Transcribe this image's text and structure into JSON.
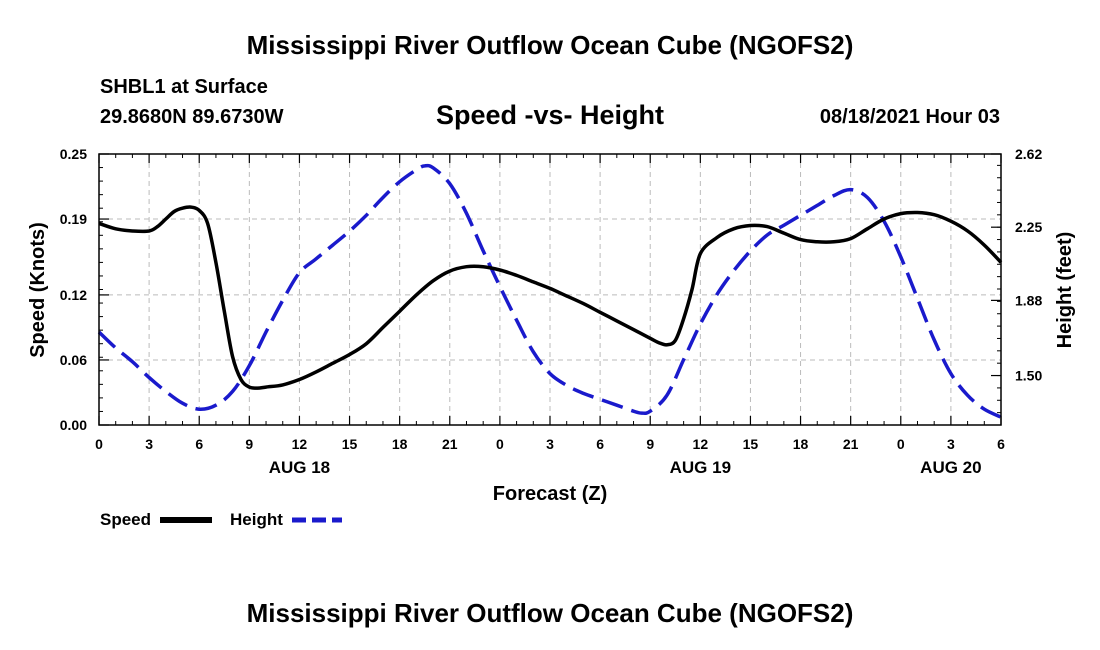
{
  "header": {
    "title": "Mississippi River Outflow Ocean Cube (NGOFS2)",
    "station": "SHBL1 at Surface",
    "coords": "29.8680N  89.6730W",
    "subtitle": "Speed -vs- Height",
    "datetime": "08/18/2021 Hour 03"
  },
  "footer": {
    "title": "Mississippi River Outflow Ocean Cube (NGOFS2)"
  },
  "legend": {
    "speed_label": "Speed",
    "height_label": "Height"
  },
  "chart_data": {
    "type": "line",
    "title": "Speed -vs- Height",
    "xlabel": "Forecast (Z)",
    "ylabel": "Speed (Knots)",
    "y2label": "Height (feet)",
    "x_range_hours": [
      0,
      54
    ],
    "x_ticks": [
      {
        "hour": 0,
        "label": "0"
      },
      {
        "hour": 3,
        "label": "3"
      },
      {
        "hour": 6,
        "label": "6"
      },
      {
        "hour": 9,
        "label": "9"
      },
      {
        "hour": 12,
        "label": "12"
      },
      {
        "hour": 15,
        "label": "15"
      },
      {
        "hour": 18,
        "label": "18"
      },
      {
        "hour": 21,
        "label": "21"
      },
      {
        "hour": 24,
        "label": "0"
      },
      {
        "hour": 27,
        "label": "3"
      },
      {
        "hour": 30,
        "label": "6"
      },
      {
        "hour": 33,
        "label": "9"
      },
      {
        "hour": 36,
        "label": "12"
      },
      {
        "hour": 39,
        "label": "15"
      },
      {
        "hour": 42,
        "label": "18"
      },
      {
        "hour": 45,
        "label": "21"
      },
      {
        "hour": 48,
        "label": "0"
      },
      {
        "hour": 51,
        "label": "3"
      },
      {
        "hour": 54,
        "label": "6"
      }
    ],
    "date_labels": [
      {
        "hour": 12,
        "label": "AUG 18"
      },
      {
        "hour": 36,
        "label": "AUG 19"
      },
      {
        "hour": 51,
        "label": "AUG 20"
      }
    ],
    "y_left": {
      "min": 0,
      "max": 0.25,
      "ticks": [
        "0.00",
        "0.06",
        "0.12",
        "0.19",
        "0.25"
      ]
    },
    "y_right": {
      "min": 1.25,
      "max": 2.62,
      "ticks": [
        "1.50",
        "1.88",
        "2.25",
        "2.62"
      ]
    },
    "grid": true,
    "legend_position": "bottom-left",
    "series": [
      {
        "name": "Speed",
        "axis": "left",
        "color": "#000000",
        "style": "solid",
        "x": [
          0,
          1,
          2,
          3,
          3.5,
          4,
          4.5,
          5,
          5.5,
          6,
          6.5,
          7,
          7.5,
          8,
          8.5,
          9,
          9.5,
          10,
          11,
          12,
          13,
          14,
          15,
          16,
          17,
          18,
          19,
          20,
          21,
          22,
          23,
          24,
          25,
          26,
          27,
          28,
          29,
          30,
          31,
          32,
          33,
          33.5,
          34,
          34.5,
          35,
          35.5,
          36,
          37,
          38,
          39,
          40,
          41,
          42,
          43,
          44,
          45,
          46,
          47,
          48,
          49,
          50,
          51,
          52,
          53,
          54
        ],
        "values": [
          0.186,
          0.181,
          0.179,
          0.179,
          0.183,
          0.19,
          0.197,
          0.2,
          0.201,
          0.198,
          0.186,
          0.15,
          0.105,
          0.063,
          0.042,
          0.035,
          0.034,
          0.035,
          0.037,
          0.042,
          0.049,
          0.057,
          0.065,
          0.075,
          0.09,
          0.105,
          0.12,
          0.133,
          0.142,
          0.146,
          0.146,
          0.143,
          0.138,
          0.132,
          0.126,
          0.119,
          0.112,
          0.104,
          0.096,
          0.088,
          0.08,
          0.076,
          0.074,
          0.078,
          0.098,
          0.125,
          0.158,
          0.173,
          0.181,
          0.184,
          0.183,
          0.177,
          0.171,
          0.169,
          0.169,
          0.172,
          0.181,
          0.19,
          0.195,
          0.196,
          0.194,
          0.188,
          0.179,
          0.166,
          0.15
        ]
      },
      {
        "name": "Height",
        "axis": "right",
        "color": "#1a1acc",
        "style": "dashed",
        "x": [
          0,
          1,
          2,
          3,
          4,
          5,
          6,
          7,
          8,
          9,
          10,
          11,
          12,
          13,
          14,
          15,
          16,
          17,
          18,
          19,
          19.5,
          20,
          21,
          22,
          23,
          24,
          25,
          26,
          27,
          28,
          29,
          30,
          31,
          32,
          32.5,
          33,
          34,
          35,
          36,
          37,
          38,
          39,
          40,
          41,
          42,
          43,
          44,
          45,
          46,
          47,
          48,
          49,
          50,
          51,
          52,
          53,
          54
        ],
        "values": [
          1.72,
          1.64,
          1.57,
          1.49,
          1.42,
          1.36,
          1.33,
          1.35,
          1.42,
          1.55,
          1.72,
          1.88,
          2.02,
          2.09,
          2.16,
          2.23,
          2.31,
          2.4,
          2.48,
          2.54,
          2.56,
          2.55,
          2.47,
          2.32,
          2.13,
          1.95,
          1.78,
          1.62,
          1.51,
          1.45,
          1.41,
          1.38,
          1.35,
          1.32,
          1.31,
          1.32,
          1.4,
          1.58,
          1.76,
          1.91,
          2.03,
          2.13,
          2.21,
          2.26,
          2.31,
          2.36,
          2.41,
          2.44,
          2.4,
          2.28,
          2.1,
          1.89,
          1.68,
          1.51,
          1.4,
          1.33,
          1.29
        ]
      }
    ]
  }
}
